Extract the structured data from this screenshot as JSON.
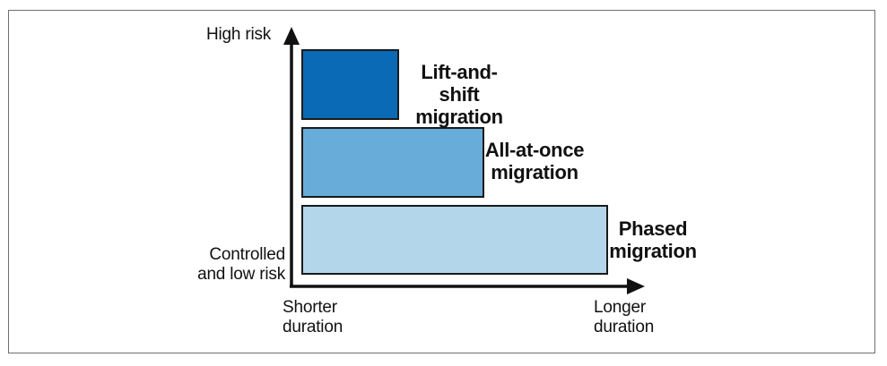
{
  "y_axis": {
    "top_label": "High risk",
    "bottom_label": "Controlled\nand low risk"
  },
  "x_axis": {
    "left_label": "Shorter\nduration",
    "right_label": "Longer\nduration"
  },
  "approaches": [
    {
      "label": "Lift-and-shift\nmigration",
      "risk_level": 3,
      "relative_duration": 1,
      "color": "#0a6ab6"
    },
    {
      "label": "All-at-once\nmigration",
      "risk_level": 2,
      "relative_duration": 2,
      "color": "#68acd9"
    },
    {
      "label": "Phased\nmigration",
      "risk_level": 1,
      "relative_duration": 3,
      "color": "#b3d6eb"
    }
  ],
  "colors": {
    "axis": "#111111",
    "bar_border": "#1a1a1a",
    "frame": "#6f6f6f"
  }
}
